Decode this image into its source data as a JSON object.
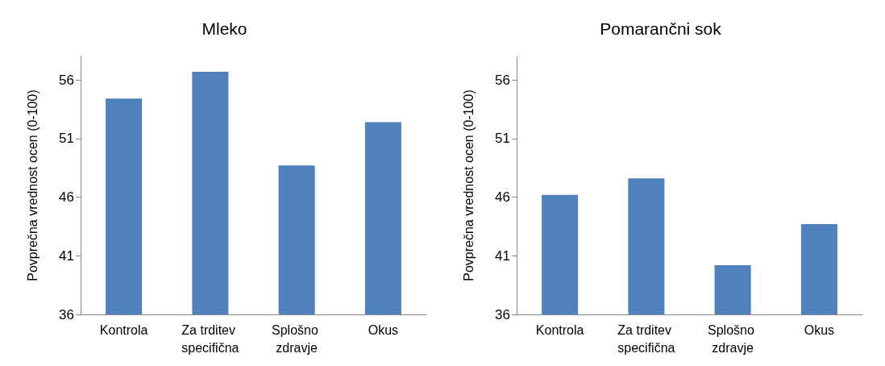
{
  "chart_data": [
    {
      "type": "bar",
      "title": "Mleko",
      "ylabel": "Povprečna vrednost ocen (0-100)",
      "categories": [
        "Kontrola",
        "Za trditev specifična",
        "Splošno zdravje",
        "Okus"
      ],
      "values": [
        54.4,
        56.7,
        48.7,
        52.4
      ],
      "color": "#4f81bd",
      "ylim": [
        36,
        58
      ],
      "yticks": [
        36,
        41,
        46,
        51,
        56
      ],
      "grid": false
    },
    {
      "type": "bar",
      "title": "Pomarančni sok",
      "ylabel": "Povprečna vrednost ocen (0-100)",
      "categories": [
        "Kontrola",
        "Za trditev specifična",
        "Splošno zdravje",
        "Okus"
      ],
      "values": [
        46.2,
        47.6,
        40.2,
        43.7
      ],
      "color": "#4f81bd",
      "ylim": [
        36,
        58
      ],
      "yticks": [
        36,
        41,
        46,
        51,
        56
      ],
      "grid": false
    }
  ]
}
